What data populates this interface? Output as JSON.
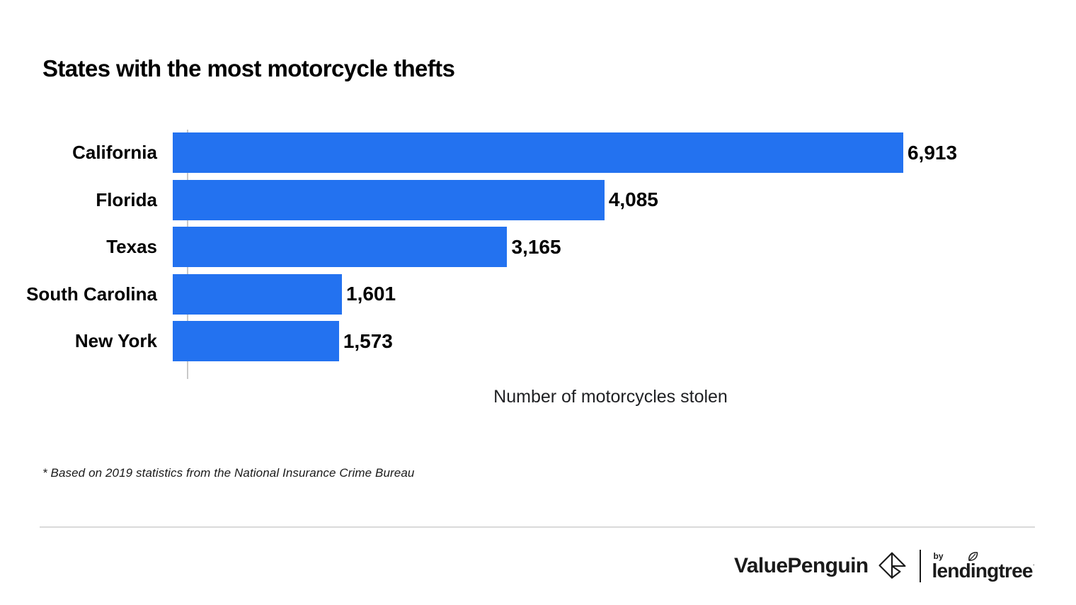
{
  "title": "States with the most motorcycle thefts",
  "chart_data": {
    "type": "bar",
    "orientation": "horizontal",
    "categories": [
      "California",
      "Florida",
      "Texas",
      "South Carolina",
      "New York"
    ],
    "values": [
      6913,
      4085,
      3165,
      1601,
      1573
    ],
    "value_labels": [
      "6,913",
      "4,085",
      "3,165",
      "1,601",
      "1,573"
    ],
    "title": "States with the most motorcycle thefts",
    "xlabel": "Number of motorcycles stolen",
    "ylabel": "",
    "xlim": [
      0,
      8005
    ],
    "grid": false,
    "legend": "none",
    "bar_color": "#2372F0",
    "label_color": "#000000",
    "axis_line_color": "#c9c9c9"
  },
  "footnote": "* Based on 2019 statistics from the National Insurance Crime Bureau",
  "footer": {
    "brand": "ValuePenguin",
    "brand_icon": "valuepenguin-origami-icon",
    "by_label": "by",
    "partner_brand_prefix": "lend",
    "partner_brand_i": "i",
    "partner_brand_suffix": "ngtree",
    "partner_mark": "·",
    "partner_icon": "leaf-icon",
    "text_color": "#1a1a1a"
  }
}
